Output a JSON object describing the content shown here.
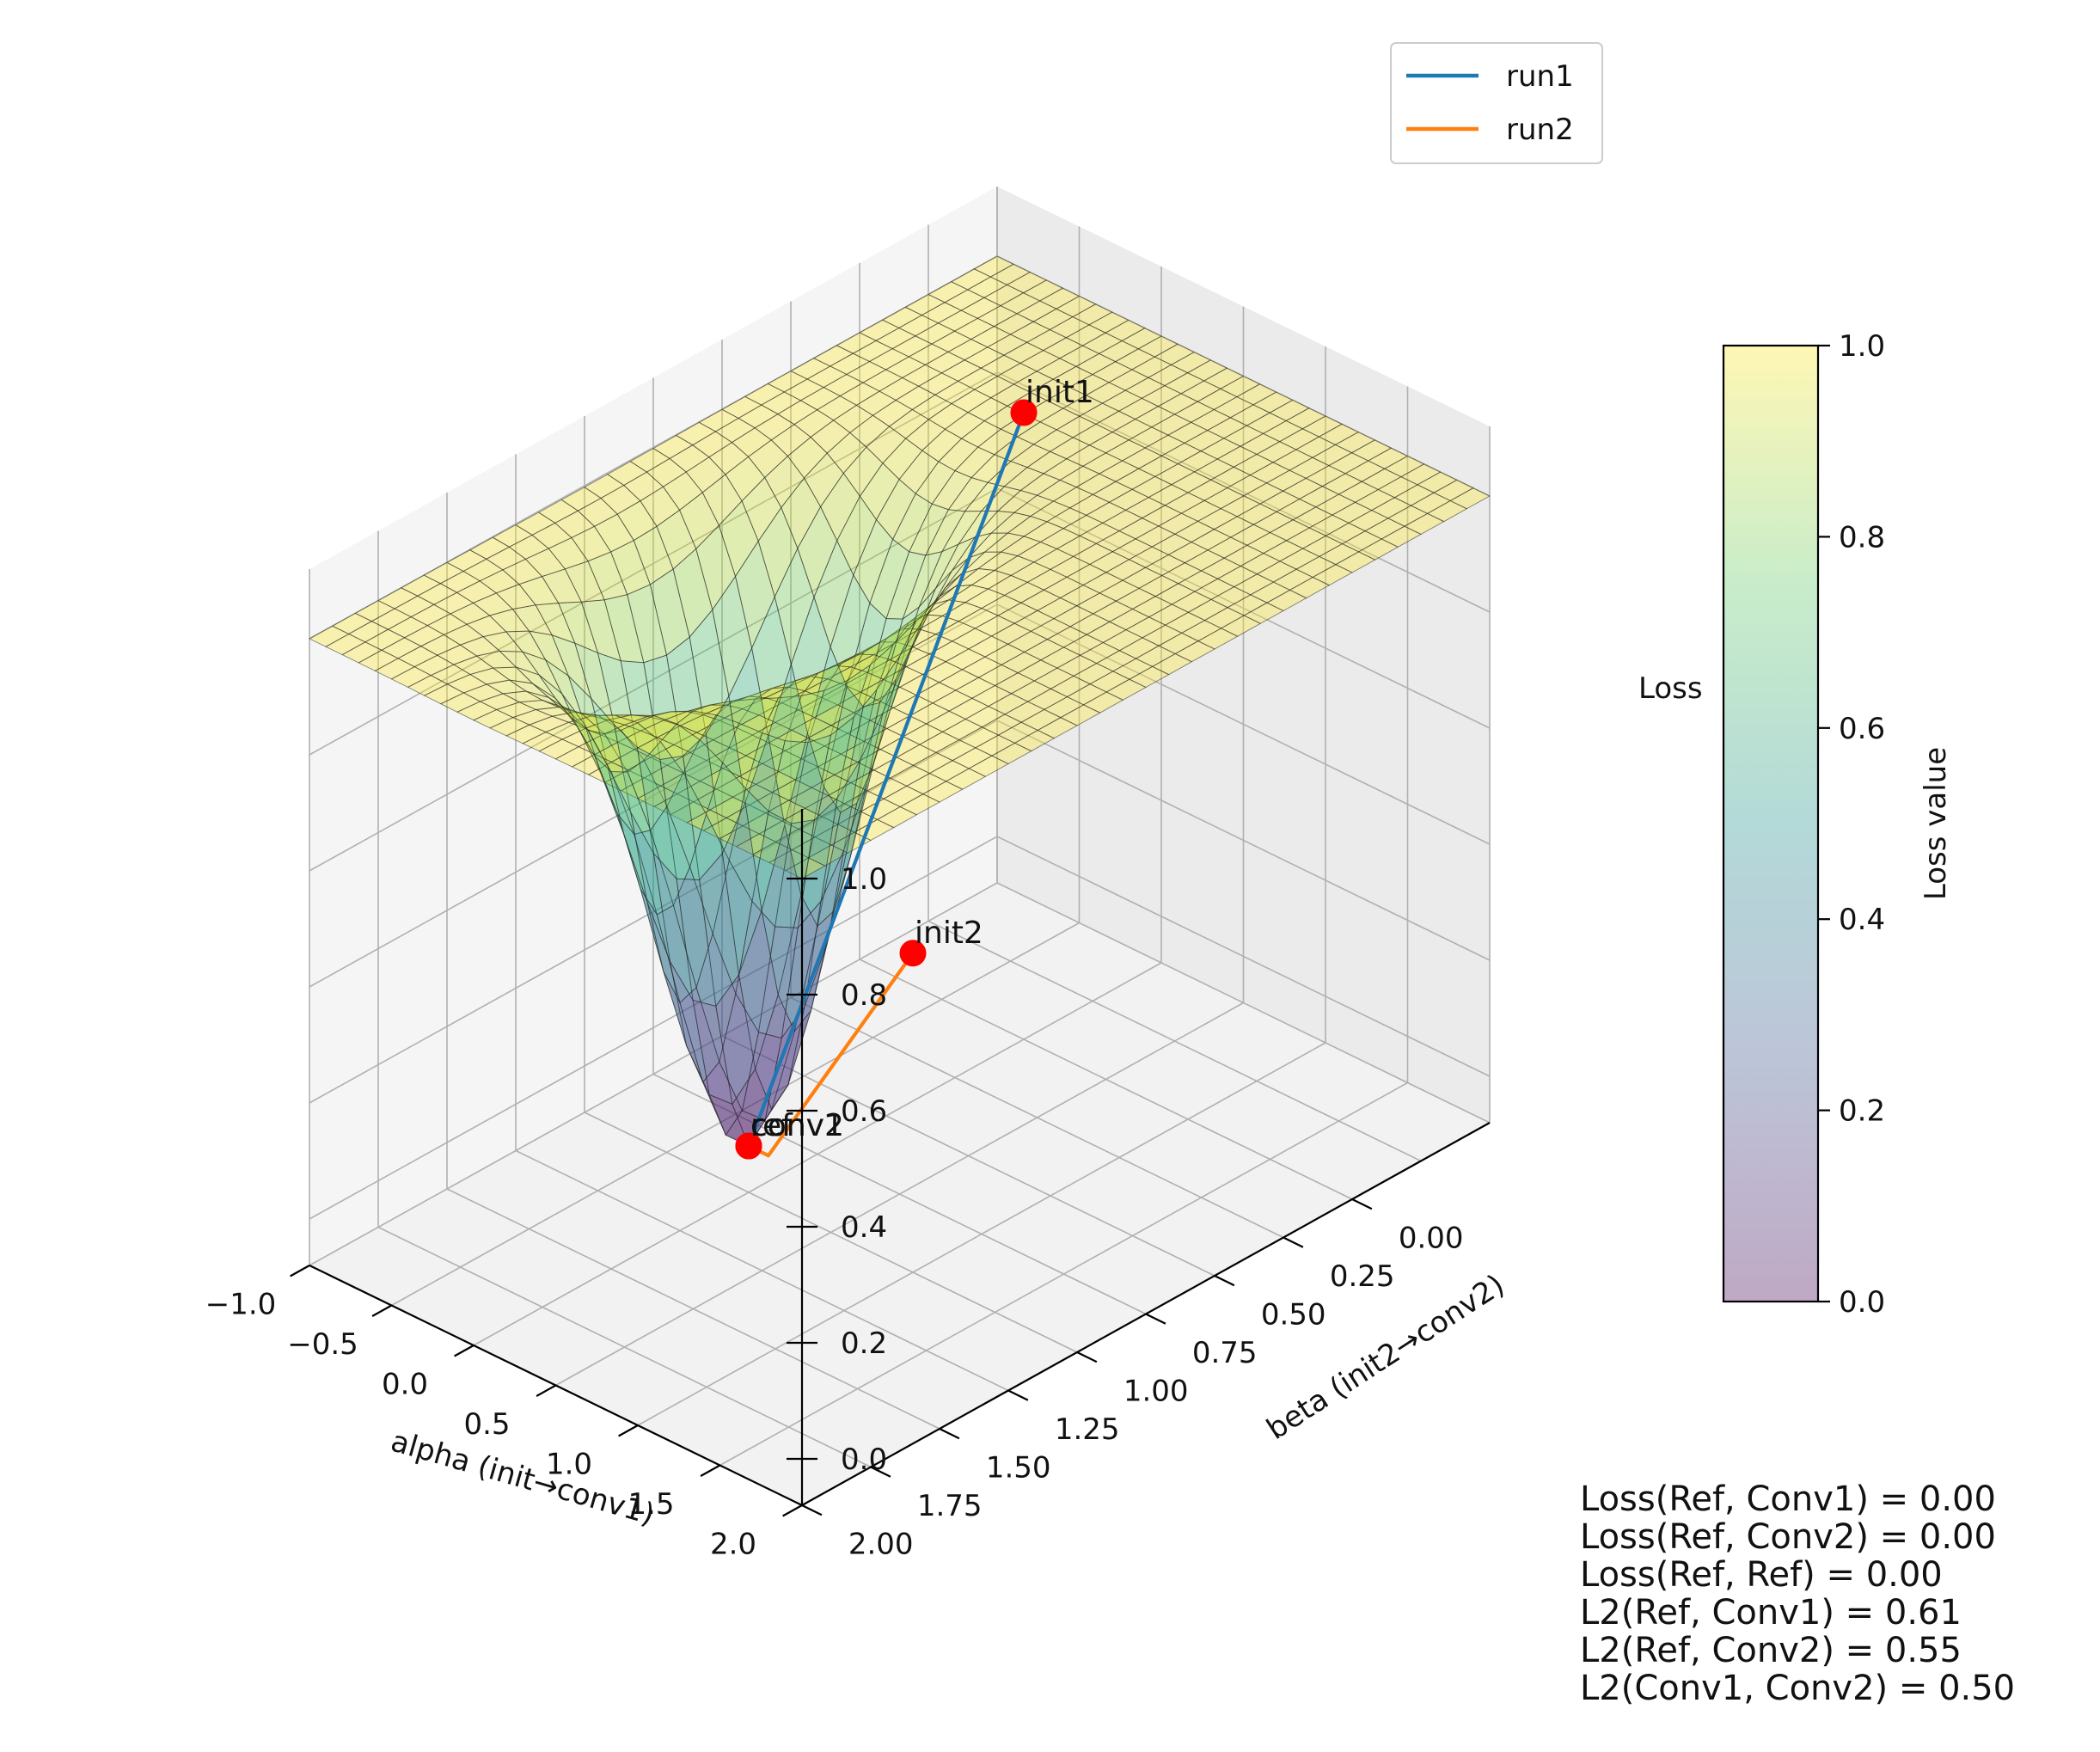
{
  "chart_data": {
    "type": "surface3d",
    "xlabel": "alpha (init→conv1)",
    "ylabel": "beta (init2→conv2)",
    "zlabel": "Loss",
    "xlim": [
      0.0,
      2.0
    ],
    "ylim": [
      -1.0,
      2.0
    ],
    "zlim": [
      0.0,
      1.0
    ],
    "xticks": [
      "0.00",
      "0.25",
      "0.50",
      "0.75",
      "1.00",
      "1.25",
      "1.50",
      "1.75",
      "2.00"
    ],
    "yticks": [
      "−1.0",
      "−0.5",
      "0.0",
      "0.5",
      "1.0",
      "1.5",
      "2.0"
    ],
    "zticks": [
      "0.0",
      "0.2",
      "0.4",
      "0.6",
      "0.8",
      "1.0"
    ],
    "surface": {
      "x_range": [
        -0.5,
        2.0
      ],
      "y_range": [
        -1.0,
        2.0
      ],
      "min_at": [
        1.0,
        0.0
      ],
      "min_value": 0.0,
      "max_value": 1.0
    },
    "colormap": "viridis",
    "colorbar": {
      "label": "Loss value",
      "ticks": [
        "0.0",
        "0.2",
        "0.4",
        "0.6",
        "0.8",
        "1.0"
      ]
    },
    "legend": {
      "position": "top-right",
      "entries": [
        {
          "name": "run1",
          "color": "#1f77b4"
        },
        {
          "name": "run2",
          "color": "#ff7f0e"
        }
      ]
    },
    "series": [
      {
        "name": "run1",
        "color": "#1f77b4",
        "points": [
          [
            0.0,
            0.0,
            1.0
          ],
          [
            1.0,
            0.0,
            0.0
          ]
        ]
      },
      {
        "name": "run2",
        "color": "#ff7f0e",
        "points": [
          [
            1.0,
            1.0,
            0.47
          ],
          [
            1.0,
            0.12,
            0.0
          ],
          [
            1.0,
            0.0,
            0.0
          ]
        ]
      }
    ],
    "markers": [
      {
        "label": "init1",
        "x": 0.0,
        "y": 0.0,
        "z": 1.0
      },
      {
        "label": "init2",
        "x": 1.0,
        "y": 1.0,
        "z": 0.47
      },
      {
        "label": "conv1",
        "x": 1.0,
        "y": 0.0,
        "z": 0.0
      },
      {
        "label": "conv2",
        "x": 1.0,
        "y": 0.0,
        "z": 0.0
      },
      {
        "label": "ref",
        "x": 1.0,
        "y": 0.0,
        "z": 0.0
      }
    ],
    "annotations": [
      "Loss(Ref, Conv1) = 0.00",
      "Loss(Ref, Conv2) = 0.00",
      "Loss(Ref, Ref) = 0.00",
      "L2(Ref, Conv1) = 0.61",
      "L2(Ref, Conv2) = 0.55",
      "L2(Conv1, Conv2) = 0.50"
    ]
  }
}
